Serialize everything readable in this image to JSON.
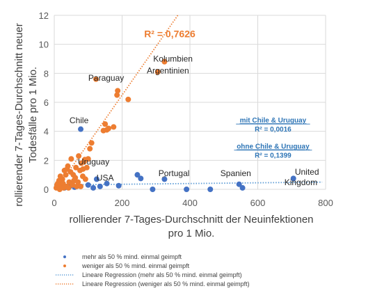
{
  "chart_data": {
    "type": "scatter",
    "xlabel": [
      "rollierender 7-Tages-Durchschnitt der Neuinfektionen",
      "pro 1 Mio."
    ],
    "ylabel": [
      "rollierender 7-Tages-Durchschnitt neuer",
      "Todesfälle pro 1 Mio."
    ],
    "xlim": [
      0,
      800
    ],
    "ylim": [
      0,
      12
    ],
    "xticks": [
      "0",
      "200",
      "400",
      "600",
      "800"
    ],
    "yticks": [
      "0",
      "2",
      "4",
      "6",
      "8",
      "10",
      "12"
    ],
    "grid": true,
    "colors": {
      "blue": "#4472c4",
      "orange": "#ed7d31",
      "blue_trend": "#5b9bd5",
      "orange_trend": "#ed7d31"
    },
    "series": [
      {
        "name": "mehr als 50 % mind. einmal geimpft",
        "x": [
          78,
          125,
          155,
          190,
          245,
          255,
          290,
          325,
          390,
          460,
          545,
          555,
          705,
          30,
          45,
          60,
          100,
          115,
          135
        ],
        "y": [
          4.15,
          0.7,
          0.4,
          0.25,
          1.0,
          0.75,
          0.0,
          0.7,
          0.0,
          0.0,
          0.35,
          0.1,
          0.75,
          0.1,
          0.2,
          0.15,
          0.3,
          0.1,
          0.2
        ]
      },
      {
        "name": "weniger als 50 % mind. einmal geimpft",
        "x": [
          325,
          305,
          123,
          187,
          185,
          218,
          175,
          160,
          145,
          150,
          155,
          110,
          105,
          100,
          90,
          72,
          88,
          80,
          85,
          96,
          64,
          76,
          84,
          50,
          40,
          38,
          48,
          56,
          62,
          30,
          34,
          24,
          18,
          14,
          10,
          20,
          26,
          44,
          54,
          70,
          66,
          78,
          6,
          12,
          16,
          8,
          28,
          36,
          42,
          52,
          58,
          92
        ],
        "y": [
          8.8,
          8.1,
          7.6,
          6.8,
          6.5,
          6.2,
          4.3,
          4.2,
          4.05,
          4.5,
          4.1,
          3.2,
          2.8,
          2.1,
          2.05,
          2.3,
          1.9,
          1.8,
          1.4,
          1.5,
          1.5,
          1.3,
          0.9,
          2.1,
          1.6,
          1.4,
          1.2,
          1.0,
          0.8,
          1.3,
          1.0,
          0.7,
          0.9,
          0.6,
          0.4,
          0.3,
          0.4,
          0.5,
          0.3,
          0.5,
          0.2,
          0.2,
          0.1,
          0.2,
          0.0,
          0.3,
          0.1,
          0.2,
          0.1,
          0.4,
          0.6,
          0.7
        ]
      }
    ],
    "trendlines": [
      {
        "name": "Lineare Regression (mehr als 50 % mind. einmal geimpft)",
        "intercept": 0.3,
        "slope": 0.00025,
        "x_range": [
          0,
          790
        ]
      },
      {
        "name": "Lineare Regression (weniger als 50 % mind. einmal geimpft)",
        "intercept": -0.2,
        "slope": 0.0335,
        "x_range": [
          0,
          370
        ]
      }
    ],
    "annotations": [
      {
        "text": "Kolumbien",
        "x": 350,
        "y": 8.8
      },
      {
        "text": "Argentinien",
        "x": 335,
        "y": 8.0
      },
      {
        "text": "Paraguay",
        "x": 153,
        "y": 7.5
      },
      {
        "text": "Chile",
        "x": 73,
        "y": 4.55
      },
      {
        "text": "Uruguay",
        "x": 116,
        "y": 1.7
      },
      {
        "text": "USA",
        "x": 150,
        "y": 0.6
      },
      {
        "text": "Portugal",
        "x": 353,
        "y": 0.92
      },
      {
        "text": "Spanien",
        "x": 535,
        "y": 0.92
      },
      {
        "text": "United",
        "x": 745,
        "y": 1.02
      },
      {
        "text": "Kingdom",
        "x": 727,
        "y": 0.3
      }
    ],
    "r2_orange": {
      "text": "R² = 0,7626",
      "x": 265,
      "y": 10.5
    },
    "r2_blue": [
      {
        "heading": "mit Chile & Uruguay",
        "value": "R² = 0,0016",
        "x": 645,
        "y": 4.6
      },
      {
        "heading": "ohne Chile & Uruguay",
        "value": "R² = 0,1399",
        "x": 645,
        "y": 2.8
      }
    ],
    "legend": [
      {
        "label": "mehr als 50 % mind. einmal geimpft",
        "kind": "dot",
        "color": "#4472c4"
      },
      {
        "label": "weniger als 50 % mind. einmal geimpft",
        "kind": "dot",
        "color": "#ed7d31"
      },
      {
        "label": "Lineare Regression (mehr als 50 % mind. einmal geimpft)",
        "kind": "dotted",
        "color": "#5b9bd5"
      },
      {
        "label": "Lineare Regression (weniger als 50 % mind. einmal geimpft)",
        "kind": "dotted",
        "color": "#ed7d31"
      }
    ],
    "legend_position": "bottom"
  }
}
